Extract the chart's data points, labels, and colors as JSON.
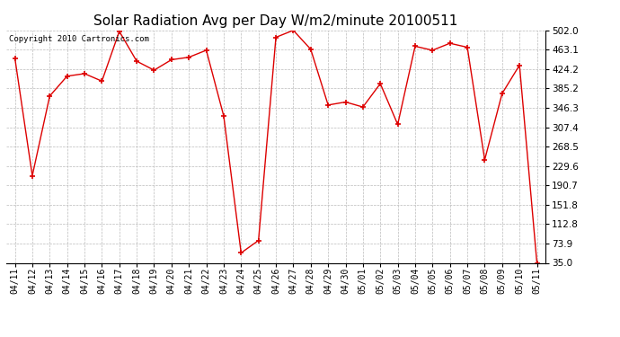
{
  "title": "Solar Radiation Avg per Day W/m2/minute 20100511",
  "copyright": "Copyright 2010 Cartronics.com",
  "labels": [
    "04/11",
    "04/12",
    "04/13",
    "04/14",
    "04/15",
    "04/16",
    "04/17",
    "04/18",
    "04/19",
    "04/20",
    "04/21",
    "04/22",
    "04/23",
    "04/24",
    "04/25",
    "04/26",
    "04/27",
    "04/28",
    "04/29",
    "04/30",
    "05/01",
    "05/02",
    "05/03",
    "05/04",
    "05/05",
    "05/06",
    "05/07",
    "05/08",
    "05/09",
    "05/10",
    "05/11"
  ],
  "values": [
    446.0,
    210.0,
    370.0,
    410.0,
    415.0,
    400.0,
    500.0,
    440.0,
    422.0,
    443.0,
    448.0,
    462.0,
    330.0,
    55.0,
    80.0,
    488.0,
    502.0,
    464.0,
    352.0,
    358.0,
    348.0,
    395.0,
    313.0,
    470.0,
    462.0,
    476.0,
    468.0,
    242.0,
    375.0,
    432.0,
    35.0
  ],
  "yticks": [
    35.0,
    73.9,
    112.8,
    151.8,
    190.7,
    229.6,
    268.5,
    307.4,
    346.3,
    385.2,
    424.2,
    463.1,
    502.0
  ],
  "ymin": 35.0,
  "ymax": 502.0,
  "line_color": "#dd0000",
  "marker": "+",
  "marker_size": 4,
  "marker_linewidth": 1.2,
  "line_width": 1.0,
  "background_color": "#ffffff",
  "grid_color": "#bbbbbb",
  "title_fontsize": 11,
  "copyright_fontsize": 6.5,
  "tick_fontsize": 7,
  "ytick_fontsize": 7.5
}
